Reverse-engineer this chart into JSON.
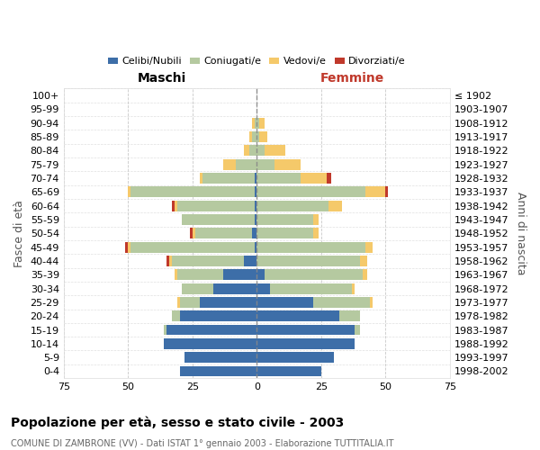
{
  "age_groups": [
    "0-4",
    "5-9",
    "10-14",
    "15-19",
    "20-24",
    "25-29",
    "30-34",
    "35-39",
    "40-44",
    "45-49",
    "50-54",
    "55-59",
    "60-64",
    "65-69",
    "70-74",
    "75-79",
    "80-84",
    "85-89",
    "90-94",
    "95-99",
    "100+"
  ],
  "birth_years": [
    "1998-2002",
    "1993-1997",
    "1988-1992",
    "1983-1987",
    "1978-1982",
    "1973-1977",
    "1968-1972",
    "1963-1967",
    "1958-1962",
    "1953-1957",
    "1948-1952",
    "1943-1947",
    "1938-1942",
    "1933-1937",
    "1928-1932",
    "1923-1927",
    "1918-1922",
    "1913-1917",
    "1908-1912",
    "1903-1907",
    "≤ 1902"
  ],
  "male": {
    "celibi": [
      30,
      28,
      36,
      35,
      30,
      22,
      17,
      13,
      5,
      1,
      2,
      1,
      1,
      1,
      1,
      0,
      0,
      0,
      0,
      0,
      0
    ],
    "coniugati": [
      0,
      0,
      0,
      1,
      3,
      8,
      12,
      18,
      28,
      48,
      22,
      28,
      30,
      48,
      20,
      8,
      3,
      2,
      1,
      0,
      0
    ],
    "vedovi": [
      0,
      0,
      0,
      0,
      0,
      1,
      0,
      1,
      1,
      1,
      1,
      0,
      1,
      1,
      1,
      5,
      2,
      1,
      1,
      0,
      0
    ],
    "divorziati": [
      0,
      0,
      0,
      0,
      0,
      0,
      0,
      0,
      1,
      1,
      1,
      0,
      1,
      0,
      0,
      0,
      0,
      0,
      0,
      0,
      0
    ]
  },
  "female": {
    "nubili": [
      25,
      30,
      38,
      38,
      32,
      22,
      5,
      3,
      0,
      0,
      0,
      0,
      0,
      0,
      0,
      0,
      0,
      0,
      0,
      0,
      0
    ],
    "coniugate": [
      0,
      0,
      0,
      2,
      8,
      22,
      32,
      38,
      40,
      42,
      22,
      22,
      28,
      42,
      17,
      7,
      3,
      1,
      1,
      0,
      0
    ],
    "vedove": [
      0,
      0,
      0,
      0,
      0,
      1,
      1,
      2,
      3,
      3,
      2,
      2,
      5,
      8,
      10,
      10,
      8,
      3,
      2,
      0,
      0
    ],
    "divorziate": [
      0,
      0,
      0,
      0,
      0,
      0,
      0,
      0,
      0,
      0,
      0,
      0,
      0,
      1,
      2,
      0,
      0,
      0,
      0,
      0,
      0
    ]
  },
  "colors": {
    "celibi": "#3d6ea8",
    "coniugati": "#b5c9a0",
    "vedovi": "#f5c96a",
    "divorziati": "#c0392b"
  },
  "xlim": 75,
  "title": "Popolazione per età, sesso e stato civile - 2003",
  "subtitle": "COMUNE DI ZAMBRONE (VV) - Dati ISTAT 1° gennaio 2003 - Elaborazione TUTTITALIA.IT",
  "ylabel_left": "Fasce di età",
  "ylabel_right": "Anni di nascita",
  "legend_labels": [
    "Celibi/Nubili",
    "Coniugati/e",
    "Vedovi/e",
    "Divorziati/e"
  ],
  "male_label": "Maschi",
  "female_label": "Femmine"
}
